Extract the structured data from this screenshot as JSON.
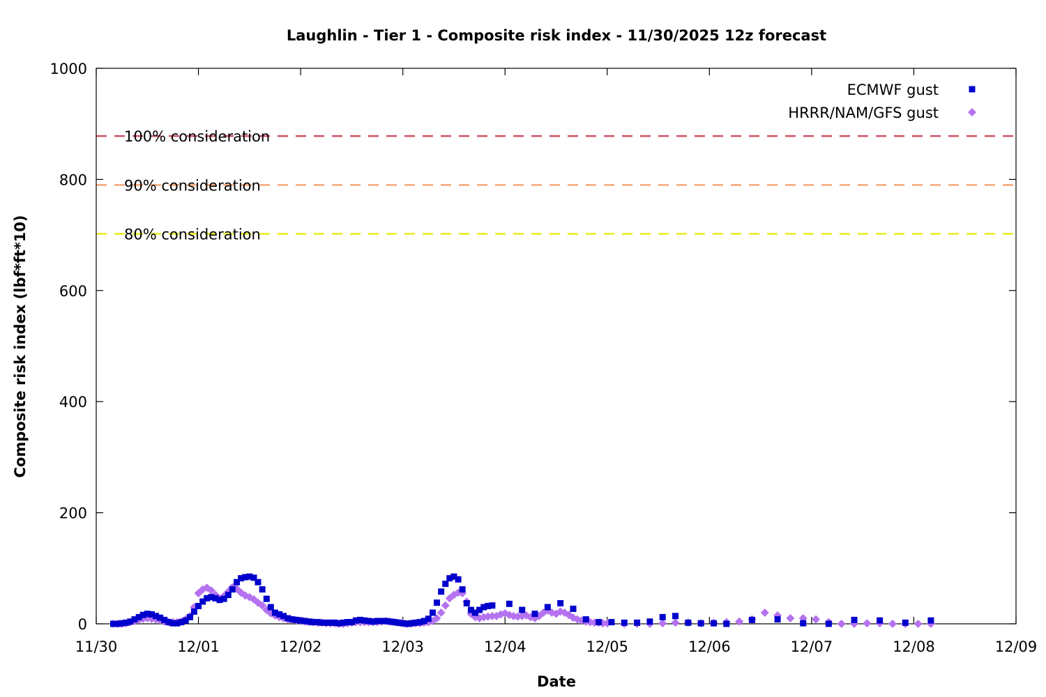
{
  "chart_data": {
    "type": "scatter",
    "title": "Laughlin - Tier 1 - Composite risk index - 11/30/2025 12z forecast",
    "xlabel": "Date",
    "ylabel": "Composite risk index (lbf*ft*10)",
    "x_unit": "days since 11/30 00z",
    "xlim": [
      0,
      9
    ],
    "ylim": [
      0,
      1000
    ],
    "x_ticks": [
      {
        "x": 0,
        "label": "11/30"
      },
      {
        "x": 1,
        "label": "12/01"
      },
      {
        "x": 2,
        "label": "12/02"
      },
      {
        "x": 3,
        "label": "12/03"
      },
      {
        "x": 4,
        "label": "12/04"
      },
      {
        "x": 5,
        "label": "12/05"
      },
      {
        "x": 6,
        "label": "12/06"
      },
      {
        "x": 7,
        "label": "12/07"
      },
      {
        "x": 8,
        "label": "12/08"
      },
      {
        "x": 9,
        "label": "12/09"
      }
    ],
    "y_ticks": [
      0,
      200,
      400,
      600,
      800,
      1000
    ],
    "grid": false,
    "legend_position": "top-right",
    "thresholds": [
      {
        "label": "100% consideration",
        "value": 878,
        "color": "#d0576a"
      },
      {
        "label": "90% consideration",
        "value": 790,
        "color": "#f4a77b"
      },
      {
        "label": "80% consideration",
        "value": 702,
        "color": "#eaea1a"
      }
    ],
    "series": [
      {
        "name": "ECMWF gust",
        "marker": "square",
        "color": "#0000cc",
        "points": [
          [
            0.167,
            0
          ],
          [
            0.208,
            0
          ],
          [
            0.25,
            1
          ],
          [
            0.292,
            2
          ],
          [
            0.333,
            4
          ],
          [
            0.375,
            8
          ],
          [
            0.417,
            12
          ],
          [
            0.458,
            16
          ],
          [
            0.5,
            18
          ],
          [
            0.542,
            17
          ],
          [
            0.583,
            14
          ],
          [
            0.625,
            11
          ],
          [
            0.667,
            7
          ],
          [
            0.708,
            3
          ],
          [
            0.75,
            1
          ],
          [
            0.792,
            1
          ],
          [
            0.833,
            3
          ],
          [
            0.875,
            6
          ],
          [
            0.917,
            12
          ],
          [
            0.958,
            22
          ],
          [
            1.0,
            32
          ],
          [
            1.042,
            40
          ],
          [
            1.083,
            46
          ],
          [
            1.125,
            48
          ],
          [
            1.167,
            46
          ],
          [
            1.208,
            43
          ],
          [
            1.25,
            45
          ],
          [
            1.292,
            52
          ],
          [
            1.333,
            62
          ],
          [
            1.375,
            75
          ],
          [
            1.417,
            82
          ],
          [
            1.458,
            84
          ],
          [
            1.5,
            85
          ],
          [
            1.542,
            83
          ],
          [
            1.583,
            75
          ],
          [
            1.625,
            62
          ],
          [
            1.667,
            45
          ],
          [
            1.708,
            30
          ],
          [
            1.75,
            20
          ],
          [
            1.792,
            17
          ],
          [
            1.833,
            14
          ],
          [
            1.875,
            10
          ],
          [
            1.917,
            8
          ],
          [
            1.958,
            7
          ],
          [
            2.0,
            6
          ],
          [
            2.042,
            5
          ],
          [
            2.083,
            4
          ],
          [
            2.125,
            3
          ],
          [
            2.167,
            3
          ],
          [
            2.208,
            2
          ],
          [
            2.25,
            2
          ],
          [
            2.292,
            2
          ],
          [
            2.333,
            2
          ],
          [
            2.375,
            1
          ],
          [
            2.417,
            2
          ],
          [
            2.458,
            3
          ],
          [
            2.5,
            3
          ],
          [
            2.542,
            6
          ],
          [
            2.583,
            7
          ],
          [
            2.625,
            6
          ],
          [
            2.667,
            5
          ],
          [
            2.708,
            4
          ],
          [
            2.75,
            5
          ],
          [
            2.792,
            5
          ],
          [
            2.833,
            5
          ],
          [
            2.875,
            4
          ],
          [
            2.917,
            3
          ],
          [
            2.958,
            2
          ],
          [
            3.0,
            1
          ],
          [
            3.042,
            0
          ],
          [
            3.083,
            1
          ],
          [
            3.125,
            2
          ],
          [
            3.167,
            3
          ],
          [
            3.208,
            5
          ],
          [
            3.25,
            9
          ],
          [
            3.292,
            20
          ],
          [
            3.333,
            38
          ],
          [
            3.375,
            58
          ],
          [
            3.417,
            72
          ],
          [
            3.458,
            82
          ],
          [
            3.5,
            85
          ],
          [
            3.542,
            80
          ],
          [
            3.583,
            62
          ],
          [
            3.625,
            37
          ],
          [
            3.667,
            25
          ],
          [
            3.708,
            20
          ],
          [
            3.75,
            25
          ],
          [
            3.792,
            30
          ],
          [
            3.833,
            32
          ],
          [
            3.875,
            33
          ],
          [
            4.042,
            36
          ],
          [
            4.167,
            25
          ],
          [
            4.292,
            18
          ],
          [
            4.417,
            30
          ],
          [
            4.542,
            37
          ],
          [
            4.667,
            27
          ],
          [
            4.792,
            8
          ],
          [
            4.917,
            3
          ],
          [
            5.042,
            3
          ],
          [
            5.167,
            2
          ],
          [
            5.292,
            2
          ],
          [
            5.417,
            4
          ],
          [
            5.542,
            12
          ],
          [
            5.667,
            14
          ],
          [
            5.792,
            2
          ],
          [
            5.917,
            1
          ],
          [
            6.042,
            1
          ],
          [
            6.167,
            0
          ],
          [
            6.417,
            7
          ],
          [
            6.667,
            8
          ],
          [
            6.917,
            1
          ],
          [
            7.167,
            0
          ],
          [
            7.417,
            7
          ],
          [
            7.667,
            6
          ],
          [
            7.917,
            2
          ],
          [
            8.167,
            6
          ]
        ]
      },
      {
        "name": "HRRR/NAM/GFS gust",
        "marker": "diamond",
        "color": "#b472f0",
        "points": [
          [
            0.167,
            0
          ],
          [
            0.208,
            0
          ],
          [
            0.25,
            0
          ],
          [
            0.292,
            1
          ],
          [
            0.333,
            3
          ],
          [
            0.375,
            5
          ],
          [
            0.417,
            7
          ],
          [
            0.458,
            9
          ],
          [
            0.5,
            10
          ],
          [
            0.542,
            9
          ],
          [
            0.583,
            8
          ],
          [
            0.625,
            6
          ],
          [
            0.667,
            4
          ],
          [
            0.708,
            3
          ],
          [
            0.75,
            3
          ],
          [
            0.792,
            3
          ],
          [
            0.833,
            4
          ],
          [
            0.875,
            8
          ],
          [
            0.917,
            14
          ],
          [
            0.958,
            30
          ],
          [
            1.0,
            55
          ],
          [
            1.042,
            62
          ],
          [
            1.083,
            65
          ],
          [
            1.125,
            60
          ],
          [
            1.167,
            52
          ],
          [
            1.208,
            45
          ],
          [
            1.25,
            50
          ],
          [
            1.292,
            58
          ],
          [
            1.333,
            66
          ],
          [
            1.375,
            63
          ],
          [
            1.417,
            56
          ],
          [
            1.458,
            51
          ],
          [
            1.5,
            48
          ],
          [
            1.542,
            44
          ],
          [
            1.583,
            38
          ],
          [
            1.625,
            33
          ],
          [
            1.667,
            25
          ],
          [
            1.708,
            19
          ],
          [
            1.75,
            15
          ],
          [
            1.792,
            12
          ],
          [
            1.833,
            10
          ],
          [
            1.875,
            8
          ],
          [
            1.917,
            7
          ],
          [
            1.958,
            6
          ],
          [
            2.0,
            5
          ],
          [
            2.042,
            4
          ],
          [
            2.083,
            3
          ],
          [
            2.125,
            3
          ],
          [
            2.167,
            2
          ],
          [
            2.208,
            2
          ],
          [
            2.25,
            1
          ],
          [
            2.292,
            1
          ],
          [
            2.333,
            1
          ],
          [
            2.375,
            0
          ],
          [
            2.417,
            0
          ],
          [
            2.458,
            1
          ],
          [
            2.5,
            2
          ],
          [
            2.542,
            3
          ],
          [
            2.583,
            3
          ],
          [
            2.625,
            3
          ],
          [
            2.667,
            3
          ],
          [
            2.708,
            3
          ],
          [
            2.75,
            3
          ],
          [
            2.792,
            4
          ],
          [
            2.833,
            5
          ],
          [
            2.875,
            4
          ],
          [
            2.917,
            3
          ],
          [
            2.958,
            2
          ],
          [
            3.0,
            1
          ],
          [
            3.042,
            0
          ],
          [
            3.083,
            0
          ],
          [
            3.125,
            1
          ],
          [
            3.167,
            1
          ],
          [
            3.208,
            2
          ],
          [
            3.25,
            3
          ],
          [
            3.292,
            5
          ],
          [
            3.333,
            10
          ],
          [
            3.375,
            20
          ],
          [
            3.417,
            33
          ],
          [
            3.458,
            46
          ],
          [
            3.5,
            52
          ],
          [
            3.542,
            56
          ],
          [
            3.583,
            55
          ],
          [
            3.625,
            40
          ],
          [
            3.667,
            18
          ],
          [
            3.708,
            12
          ],
          [
            3.75,
            10
          ],
          [
            3.792,
            12
          ],
          [
            3.833,
            13
          ],
          [
            3.875,
            14
          ],
          [
            3.917,
            14
          ],
          [
            3.958,
            17
          ],
          [
            4.0,
            19
          ],
          [
            4.042,
            16
          ],
          [
            4.083,
            14
          ],
          [
            4.125,
            13
          ],
          [
            4.167,
            14
          ],
          [
            4.208,
            15
          ],
          [
            4.25,
            12
          ],
          [
            4.292,
            10
          ],
          [
            4.333,
            14
          ],
          [
            4.375,
            20
          ],
          [
            4.417,
            24
          ],
          [
            4.458,
            20
          ],
          [
            4.5,
            18
          ],
          [
            4.542,
            22
          ],
          [
            4.583,
            20
          ],
          [
            4.625,
            16
          ],
          [
            4.667,
            11
          ],
          [
            4.708,
            8
          ],
          [
            4.75,
            6
          ],
          [
            4.792,
            4
          ],
          [
            4.833,
            3
          ],
          [
            4.875,
            2
          ],
          [
            4.917,
            2
          ],
          [
            4.958,
            1
          ],
          [
            5.0,
            1
          ],
          [
            5.167,
            0
          ],
          [
            5.292,
            0
          ],
          [
            5.417,
            0
          ],
          [
            5.542,
            1
          ],
          [
            5.667,
            2
          ],
          [
            5.792,
            2
          ],
          [
            5.917,
            1
          ],
          [
            6.042,
            2
          ],
          [
            6.167,
            3
          ],
          [
            6.292,
            4
          ],
          [
            6.417,
            8
          ],
          [
            6.542,
            20
          ],
          [
            6.667,
            15
          ],
          [
            6.792,
            10
          ],
          [
            6.917,
            10
          ],
          [
            7.042,
            8
          ],
          [
            7.167,
            3
          ],
          [
            7.292,
            0
          ],
          [
            7.417,
            0
          ],
          [
            7.542,
            1
          ],
          [
            7.667,
            1
          ],
          [
            7.792,
            0
          ],
          [
            7.917,
            0
          ],
          [
            8.042,
            0
          ],
          [
            8.167,
            0
          ]
        ]
      }
    ]
  }
}
